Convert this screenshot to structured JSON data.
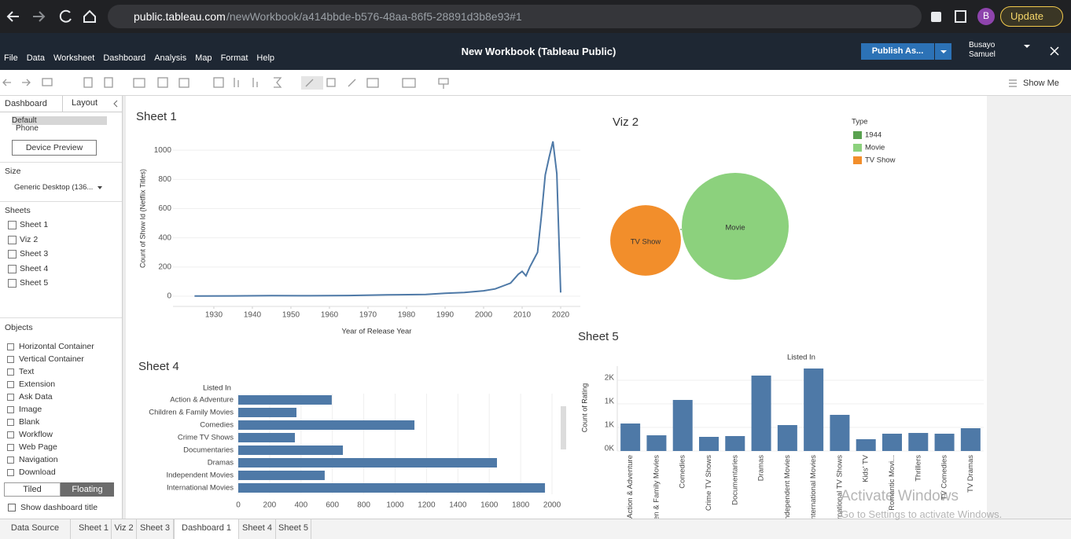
{
  "browser": {
    "host": "public.tableau.com",
    "path": "/newWorkbook/a414bbde-b576-48aa-86f5-28891d3b8e93#1",
    "avatar": "B",
    "update": "Update"
  },
  "menu": [
    "File",
    "Data",
    "Worksheet",
    "Dashboard",
    "Analysis",
    "Map",
    "Format",
    "Help"
  ],
  "workbook_title": "New Workbook (Tableau Public)",
  "publish": "Publish As...",
  "user": [
    "Busayo",
    "Samuel"
  ],
  "show_me": "Show Me",
  "side_panel": {
    "tabs": [
      "Dashboard",
      "Layout"
    ],
    "devices": [
      "Default",
      "Phone"
    ],
    "device_preview": "Device Preview",
    "size_heading": "Size",
    "size_value": "Generic Desktop (136...",
    "sheets_heading": "Sheets",
    "sheets": [
      "Sheet 1",
      "Viz 2",
      "Sheet 3",
      "Sheet 4",
      "Sheet 5"
    ],
    "objects_heading": "Objects",
    "objects": [
      "Horizontal Container",
      "Vertical Container",
      "Text",
      "Extension",
      "Ask Data",
      "Image",
      "Blank",
      "Workflow",
      "Web Page",
      "Navigation",
      "Download"
    ],
    "layout_modes": [
      "Tiled",
      "Floating"
    ],
    "show_title": "Show dashboard title"
  },
  "bottom_tabs": [
    "Data Source",
    "Sheet 1",
    "Viz 2",
    "Sheet 3",
    "Dashboard 1",
    "Sheet 4",
    "Sheet 5"
  ],
  "watermark": [
    "Activate Windows",
    "Go to Settings to activate Windows."
  ],
  "chart_data": [
    {
      "type": "line",
      "title": "Sheet 1",
      "x_label": "Year of Release Year",
      "y_label": "Count of Show Id (Netflix Titles)",
      "x": [
        1925,
        1935,
        1945,
        1955,
        1965,
        1975,
        1985,
        1990,
        1995,
        2000,
        2003,
        2005,
        2007,
        2008,
        2009,
        2010,
        2011,
        2012,
        2013,
        2014,
        2015,
        2016,
        2017,
        2018,
        2019,
        2020
      ],
      "values": [
        1,
        2,
        4,
        3,
        5,
        9,
        12,
        20,
        26,
        37,
        50,
        70,
        90,
        120,
        150,
        170,
        140,
        200,
        250,
        300,
        550,
        830,
        950,
        1060,
        840,
        25
      ],
      "color": "#4e79a7",
      "xlim": [
        1919.4,
        2025.1
      ],
      "xticks": [
        1930,
        1940,
        1950,
        1960,
        1970,
        1980,
        1990,
        2000,
        2010,
        2020
      ],
      "ylim": [
        -70,
        1060
      ],
      "yticks": [
        0,
        200,
        400,
        600,
        800,
        1000
      ],
      "grid": true
    },
    {
      "type": "bubble",
      "title": "Viz 2",
      "legend_title": "Type",
      "categories": [
        "1944",
        "Movie",
        "TV Show"
      ],
      "values": [
        1,
        6131,
        2676
      ],
      "colors": [
        "#59a14f",
        "#8cd17d",
        "#f28e2b"
      ]
    },
    {
      "type": "hbar",
      "title": "Sheet 4",
      "header": "Listed In",
      "categories": [
        "Action & Adventure",
        "Children & Family Movies",
        "Comedies",
        "Crime TV Shows",
        "Documentaries",
        "Dramas",
        "Independent Movies",
        "International Movies"
      ],
      "values": [
        596,
        371,
        1123,
        361,
        667,
        1649,
        551,
        1955
      ],
      "color": "#4e79a7",
      "xlim": [
        0,
        2050
      ],
      "xticks": [
        0,
        200,
        400,
        600,
        800,
        1000,
        1200,
        1400,
        1600,
        1800,
        2000
      ],
      "grid": true
    },
    {
      "type": "bar",
      "title": "Sheet 5",
      "header": "Listed In",
      "y_label": "Count of Rating",
      "categories": [
        "Action & Adventure",
        "Children & Family Movies",
        "Comedies",
        "Crime TV Shows",
        "Documentaries",
        "Dramas",
        "Independent Movies",
        "International Movies",
        "International TV Shows",
        "Kids' TV",
        "Romantic Movi...",
        "Thrillers",
        "TV Comedies",
        "TV Dramas"
      ],
      "values": [
        583,
        333,
        1083,
        300,
        317,
        1600,
        550,
        1750,
        767,
        250,
        367,
        383,
        367,
        483
      ],
      "color": "#4e79a7",
      "ylim": [
        0,
        1800
      ],
      "yticks": [
        {
          "value": 0,
          "label": "0K"
        },
        {
          "value": 500,
          "label": "1K"
        },
        {
          "value": 1000,
          "label": "1K"
        },
        {
          "value": 1500,
          "label": "2K"
        }
      ],
      "grid": true
    }
  ]
}
